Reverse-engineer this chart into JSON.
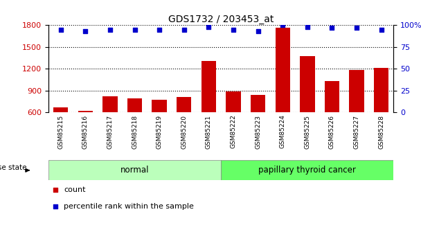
{
  "title": "GDS1732 / 203453_at",
  "samples": [
    "GSM85215",
    "GSM85216",
    "GSM85217",
    "GSM85218",
    "GSM85219",
    "GSM85220",
    "GSM85221",
    "GSM85222",
    "GSM85223",
    "GSM85224",
    "GSM85225",
    "GSM85226",
    "GSM85227",
    "GSM85228"
  ],
  "counts": [
    670,
    625,
    820,
    790,
    770,
    810,
    1310,
    890,
    840,
    1760,
    1370,
    1030,
    1180,
    1210
  ],
  "percentiles": [
    95,
    93,
    95,
    95,
    95,
    95,
    98,
    95,
    93,
    100,
    98,
    97,
    97,
    95
  ],
  "groups": [
    "normal",
    "normal",
    "normal",
    "normal",
    "normal",
    "normal",
    "normal",
    "papillary thyroid cancer",
    "papillary thyroid cancer",
    "papillary thyroid cancer",
    "papillary thyroid cancer",
    "papillary thyroid cancer",
    "papillary thyroid cancer",
    "papillary thyroid cancer"
  ],
  "normal_color": "#bbffbb",
  "cancer_color": "#66ff66",
  "bar_color": "#cc0000",
  "dot_color": "#0000cc",
  "ylim_left": [
    600,
    1800
  ],
  "ylim_right": [
    0,
    100
  ],
  "yticks_left": [
    600,
    900,
    1200,
    1500,
    1800
  ],
  "yticks_right": [
    0,
    25,
    50,
    75,
    100
  ],
  "ytick_labels_right": [
    "0",
    "25",
    "50",
    "75",
    "100%"
  ],
  "disease_state_label": "disease state",
  "normal_label": "normal",
  "cancer_label": "papillary thyroid cancer",
  "legend_count": "count",
  "legend_percentile": "percentile rank within the sample",
  "tick_bg_color": "#c8c8c8"
}
